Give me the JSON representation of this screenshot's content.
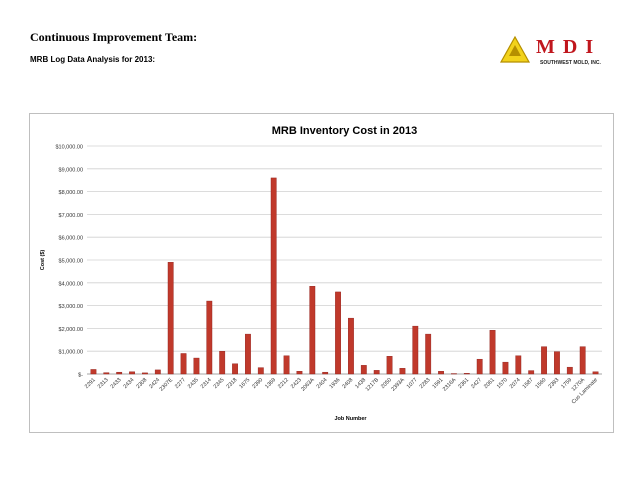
{
  "header": {
    "title": "Continuous Improvement Team:",
    "subtitle": "MRB Log Data Analysis for 2013:"
  },
  "logo": {
    "letters": "MDI",
    "tagline": "SOUTHWEST MOLD, INC.",
    "colors": {
      "emblem": "#f2d21b",
      "emblem_dark": "#b58f00",
      "text": "#c0161d"
    }
  },
  "colors": {
    "bar": "#c0392b",
    "bar_dark": "#8e1f1a",
    "grid": "#d0d0d0",
    "axis": "#888888"
  },
  "chart_data": {
    "type": "bar",
    "title": "MRB Inventory Cost in 2013",
    "xlabel": "Job Number",
    "ylabel": "Cost ($)",
    "ylim": [
      0,
      10000
    ],
    "yticks": [
      0,
      1000,
      2000,
      3000,
      4000,
      5000,
      6000,
      7000,
      8000,
      9000,
      10000
    ],
    "ytick_labels": [
      "$-",
      "$1,000.00",
      "$2,000.00",
      "$3,000.00",
      "$4,000.00",
      "$5,000.00",
      "$6,000.00",
      "$7,000.00",
      "$8,000.00",
      "$9,000.00",
      "$10,000.00"
    ],
    "grid": true,
    "legend": false,
    "categories": [
      "2291",
      "2313",
      "2433",
      "2434",
      "2308",
      "2424",
      "2307E",
      "2277",
      "2435",
      "2314",
      "2345",
      "2318",
      "1675",
      "2390",
      "1369",
      "2212",
      "2423",
      "2063A",
      "2404",
      "1936",
      "2408",
      "1438",
      "1217B",
      "2050",
      "2393A",
      "1077",
      "2283",
      "1591",
      "2316A",
      "2361",
      "2427",
      "2061",
      "1570",
      "2074",
      "1587",
      "1560",
      "2393",
      "1759",
      "1270A",
      "Cus Laminate"
    ],
    "values": [
      200,
      60,
      80,
      100,
      50,
      180,
      4900,
      900,
      700,
      3200,
      1000,
      450,
      1750,
      280,
      8600,
      800,
      120,
      3850,
      80,
      3600,
      2450,
      380,
      160,
      780,
      250,
      2100,
      1750,
      120,
      20,
      30,
      650,
      1920,
      520,
      800,
      150,
      1200,
      980,
      300,
      1200,
      100
    ]
  }
}
